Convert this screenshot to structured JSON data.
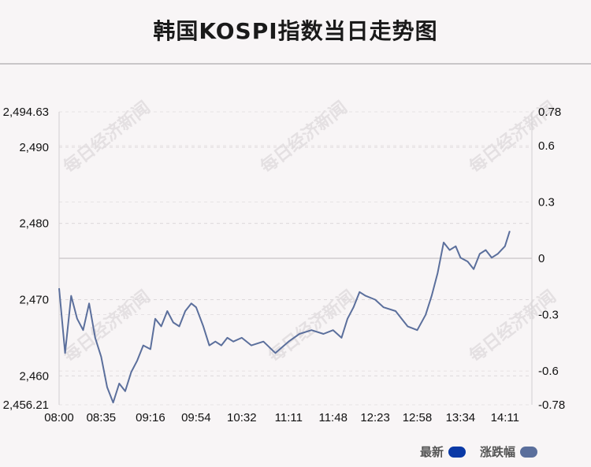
{
  "chart_data": {
    "type": "line",
    "title": "韩国KOSPI指数当日走势图",
    "watermark": "每日经济新闻",
    "x_ticks": [
      "08:00",
      "08:35",
      "09:16",
      "09:54",
      "10:32",
      "11:11",
      "11:48",
      "12:23",
      "12:58",
      "13:34",
      "14:11"
    ],
    "y_left_ticks": [
      "2,494.63",
      "2,490",
      "2,480",
      "2,470",
      "2,460",
      "2,456.21"
    ],
    "y_left_values": [
      2494.63,
      2490,
      2480,
      2470,
      2460,
      2456.21
    ],
    "y_right_ticks": [
      "0.78",
      "0.6",
      "0.3",
      "0",
      "-0.3",
      "-0.6",
      "-0.78"
    ],
    "y_right_values": [
      0.78,
      0.6,
      0.3,
      0,
      -0.3,
      -0.6,
      -0.78
    ],
    "ylim": [
      2456.21,
      2494.63
    ],
    "baseline": 2475.42,
    "series": [
      {
        "name": "最新",
        "color": "#5b6f9c",
        "x": [
          "08:00",
          "08:05",
          "08:10",
          "08:15",
          "08:20",
          "08:25",
          "08:30",
          "08:35",
          "08:40",
          "08:45",
          "08:50",
          "08:55",
          "09:00",
          "09:05",
          "09:10",
          "09:16",
          "09:20",
          "09:25",
          "09:30",
          "09:35",
          "09:40",
          "09:45",
          "09:50",
          "09:54",
          "10:00",
          "10:05",
          "10:10",
          "10:15",
          "10:20",
          "10:25",
          "10:32",
          "10:40",
          "10:50",
          "11:00",
          "11:11",
          "11:20",
          "11:30",
          "11:40",
          "11:48",
          "11:55",
          "12:00",
          "12:05",
          "12:10",
          "12:15",
          "12:23",
          "12:30",
          "12:40",
          "12:50",
          "12:58",
          "13:05",
          "13:10",
          "13:15",
          "13:20",
          "13:25",
          "13:30",
          "13:34",
          "13:40",
          "13:45",
          "13:50",
          "13:55",
          "14:00",
          "14:05",
          "14:11",
          "14:15"
        ],
        "values": [
          2471.5,
          2463.0,
          2470.5,
          2467.5,
          2466.0,
          2469.5,
          2465.0,
          2462.5,
          2458.5,
          2456.5,
          2459.0,
          2458.0,
          2460.5,
          2462.0,
          2464.0,
          2463.5,
          2467.5,
          2466.5,
          2468.5,
          2467.0,
          2466.5,
          2468.5,
          2469.5,
          2469.0,
          2466.5,
          2464.0,
          2464.5,
          2464.0,
          2465.0,
          2464.5,
          2465.0,
          2464.0,
          2464.5,
          2463.0,
          2464.5,
          2465.5,
          2466.0,
          2465.5,
          2466.0,
          2465.0,
          2467.5,
          2469.0,
          2471.0,
          2470.5,
          2470.0,
          2469.0,
          2468.5,
          2466.5,
          2466.0,
          2468.0,
          2470.5,
          2473.5,
          2477.5,
          2476.5,
          2477.0,
          2475.5,
          2475.0,
          2474.0,
          2476.0,
          2476.5,
          2475.5,
          2476.0,
          2477.0,
          2479.0
        ]
      }
    ],
    "legend": [
      {
        "label": "最新",
        "color": "#0a39a6"
      },
      {
        "label": "涨跌幅",
        "color": "#5b6f9c"
      }
    ]
  }
}
